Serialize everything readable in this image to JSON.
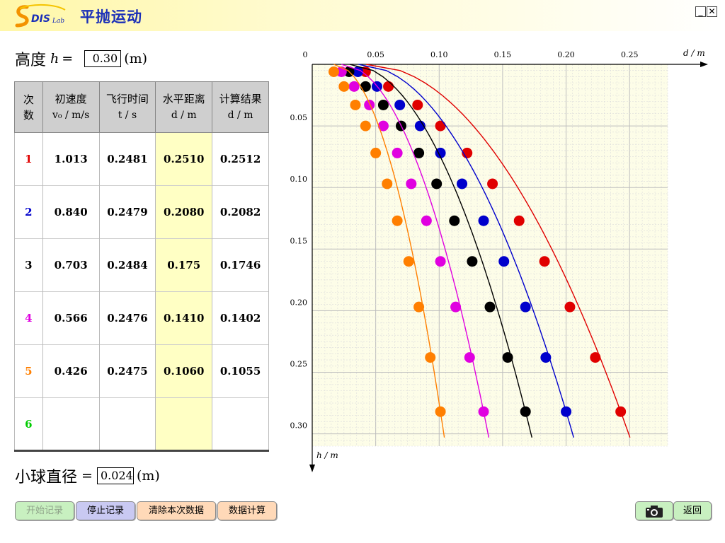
{
  "app": {
    "title": "平抛运动",
    "logo_text": "DIS Lab"
  },
  "window": {
    "minimize_label": "_",
    "close_label": "✕"
  },
  "height_field": {
    "label": "高度",
    "var": "h",
    "eq": "=",
    "value": "0.30",
    "unit": "(m)"
  },
  "table": {
    "headers": [
      {
        "l1": "次",
        "l2": "数"
      },
      {
        "l1": "初速度",
        "l2": "v₀ / m/s"
      },
      {
        "l1": "飞行时间",
        "l2": "t / s"
      },
      {
        "l1": "水平距离",
        "l2": "d / m"
      },
      {
        "l1": "计算结果",
        "l2": "d / m"
      }
    ],
    "rows": [
      {
        "n": "1",
        "v": "1.013",
        "t": "0.2481",
        "d": "0.2510",
        "c": "0.2512"
      },
      {
        "n": "2",
        "v": "0.840",
        "t": "0.2479",
        "d": "0.2080",
        "c": "0.2082"
      },
      {
        "n": "3",
        "v": "0.703",
        "t": "0.2484",
        "d": "0.175",
        "c": "0.1746"
      },
      {
        "n": "4",
        "v": "0.566",
        "t": "0.2476",
        "d": "0.1410",
        "c": "0.1402"
      },
      {
        "n": "5",
        "v": "0.426",
        "t": "0.2475",
        "d": "0.1060",
        "c": "0.1055"
      },
      {
        "n": "6",
        "v": "",
        "t": "",
        "d": "",
        "c": ""
      }
    ],
    "row_colors": [
      "#e00000",
      "#0000cc",
      "#000000",
      "#e000e0",
      "#ff7f00",
      "#00cc00"
    ]
  },
  "diameter_field": {
    "label": "小球直径",
    "eq": "=",
    "value": "0.024",
    "unit": "(m)"
  },
  "buttons": {
    "start": "开始记录",
    "stop": "停止记录",
    "clear": "清除本次数据",
    "calc": "数据计算",
    "camera_icon": "camera-icon",
    "back": "返回"
  },
  "chart_data": {
    "type": "scatter",
    "x_axis": {
      "label": "d / m",
      "range": [
        0,
        0.28
      ],
      "ticks": [
        "0",
        "0.05",
        "0.10",
        "0.15",
        "0.20",
        "0.25"
      ]
    },
    "y_axis": {
      "label": "h / m",
      "range": [
        0,
        0.31
      ],
      "ticks": [
        "0.05",
        "0.10",
        "0.15",
        "0.20",
        "0.25",
        "0.30"
      ]
    },
    "grid": true,
    "series": [
      {
        "color": "#e00000",
        "x0": 0.0425,
        "points": [
          [
            0.042,
            0.006
          ],
          [
            0.06,
            0.018
          ],
          [
            0.083,
            0.033
          ],
          [
            0.101,
            0.05
          ],
          [
            0.122,
            0.072
          ],
          [
            0.142,
            0.097
          ],
          [
            0.163,
            0.127
          ],
          [
            0.183,
            0.16
          ],
          [
            0.203,
            0.197
          ],
          [
            0.223,
            0.238
          ],
          [
            0.243,
            0.282
          ]
        ]
      },
      {
        "color": "#0000cc",
        "x0": 0.0365,
        "points": [
          [
            0.036,
            0.006
          ],
          [
            0.051,
            0.018
          ],
          [
            0.069,
            0.033
          ],
          [
            0.085,
            0.05
          ],
          [
            0.101,
            0.072
          ],
          [
            0.118,
            0.097
          ],
          [
            0.135,
            0.127
          ],
          [
            0.151,
            0.16
          ],
          [
            0.168,
            0.197
          ],
          [
            0.184,
            0.238
          ],
          [
            0.2,
            0.282
          ]
        ]
      },
      {
        "color": "#000000",
        "x0": 0.0295,
        "points": [
          [
            0.029,
            0.006
          ],
          [
            0.042,
            0.018
          ],
          [
            0.056,
            0.033
          ],
          [
            0.07,
            0.05
          ],
          [
            0.084,
            0.072
          ],
          [
            0.098,
            0.097
          ],
          [
            0.112,
            0.127
          ],
          [
            0.126,
            0.16
          ],
          [
            0.14,
            0.197
          ],
          [
            0.154,
            0.238
          ],
          [
            0.168,
            0.282
          ]
        ]
      },
      {
        "color": "#e000e0",
        "x0": 0.023,
        "points": [
          [
            0.023,
            0.006
          ],
          [
            0.033,
            0.018
          ],
          [
            0.045,
            0.033
          ],
          [
            0.056,
            0.05
          ],
          [
            0.067,
            0.072
          ],
          [
            0.078,
            0.097
          ],
          [
            0.09,
            0.127
          ],
          [
            0.101,
            0.16
          ],
          [
            0.113,
            0.197
          ],
          [
            0.124,
            0.238
          ],
          [
            0.135,
            0.282
          ]
        ]
      },
      {
        "color": "#ff7f00",
        "x0": 0.017,
        "points": [
          [
            0.017,
            0.006
          ],
          [
            0.025,
            0.018
          ],
          [
            0.034,
            0.033
          ],
          [
            0.042,
            0.05
          ],
          [
            0.05,
            0.072
          ],
          [
            0.059,
            0.097
          ],
          [
            0.067,
            0.127
          ],
          [
            0.076,
            0.16
          ],
          [
            0.084,
            0.197
          ],
          [
            0.093,
            0.238
          ],
          [
            0.101,
            0.282
          ]
        ]
      }
    ]
  }
}
